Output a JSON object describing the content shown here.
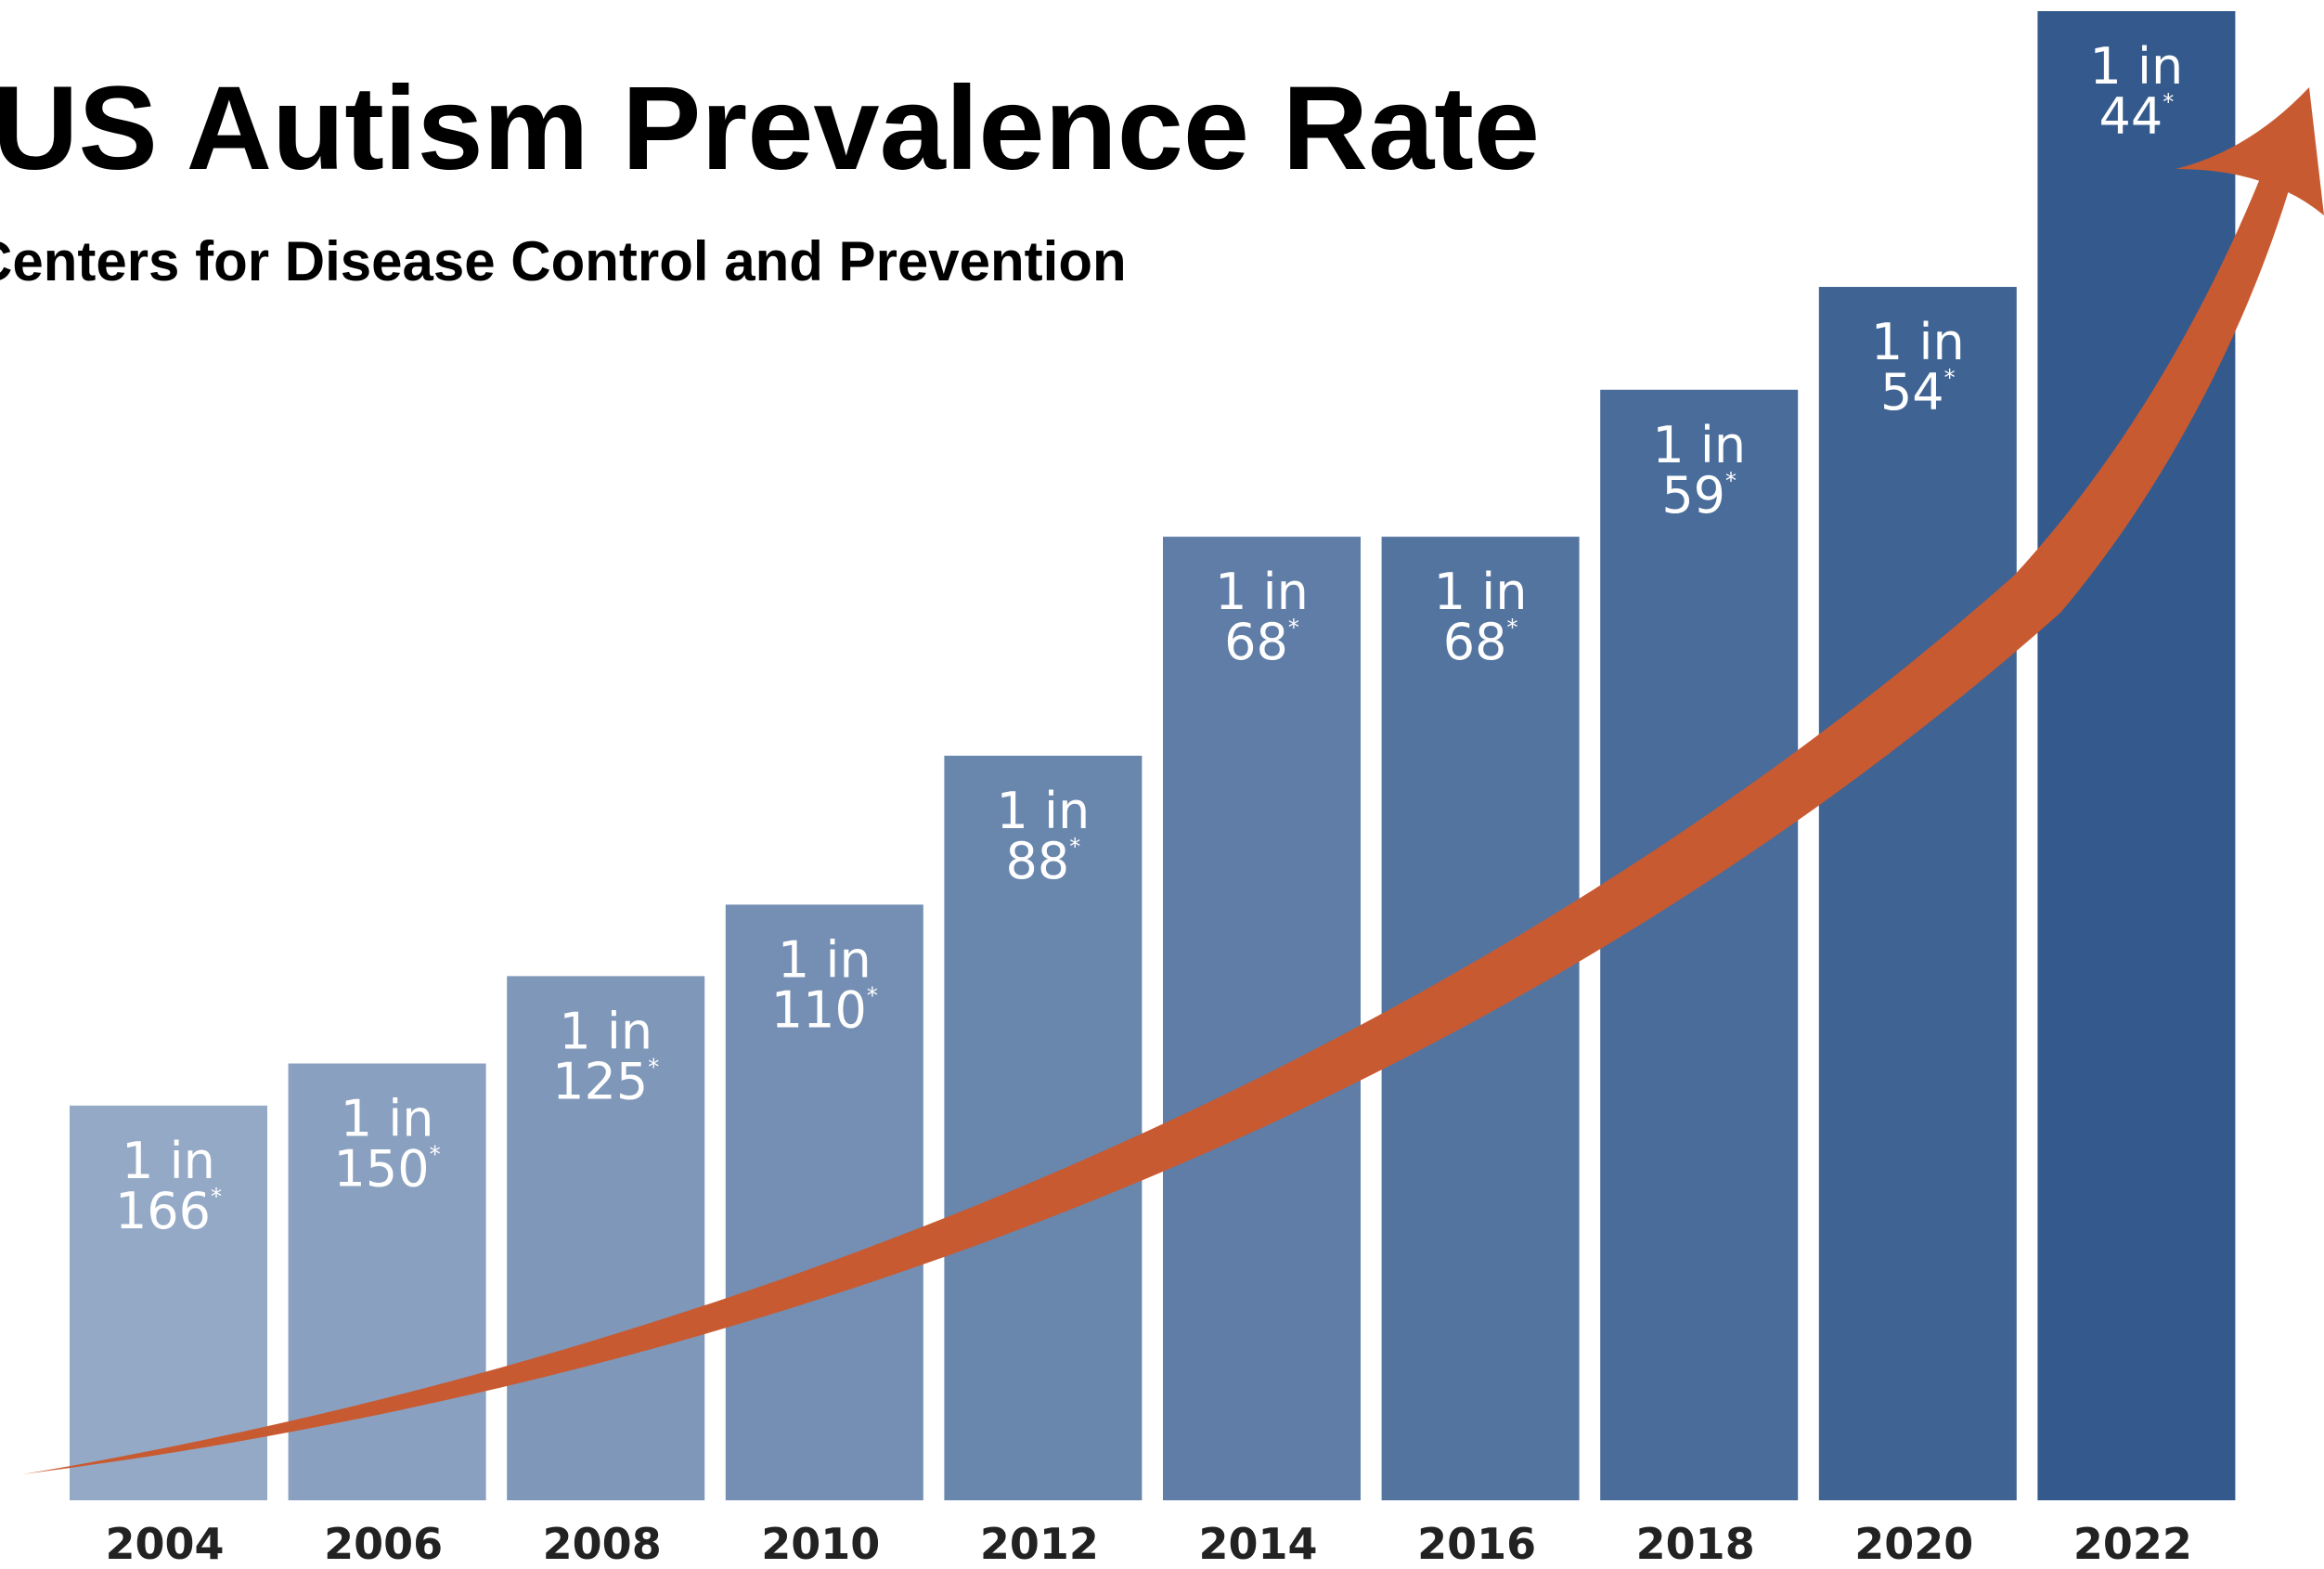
{
  "chart_data": {
    "type": "bar",
    "title": "US Autism Prevalence Rate",
    "subtitle": "Centers for Disease Control and Prevention",
    "categories": [
      "2004",
      "2006",
      "2008",
      "2010",
      "2012",
      "2014",
      "2016",
      "2018",
      "2020",
      "2022"
    ],
    "label_prefix": "1 in",
    "label_marker": "*",
    "series": [
      {
        "values": [
          166,
          150,
          125,
          110,
          88,
          68,
          68,
          59,
          54,
          44
        ]
      }
    ],
    "value_meaning": "N in '1 in N' (children)",
    "grid": false,
    "legend": "none",
    "trend_arrow": true,
    "colors": {
      "bar_light": "#94a9c6",
      "bar_dark": "#345a8d",
      "arrow": "#c85a31",
      "label": "#ffffff",
      "tick": "#222222"
    }
  }
}
